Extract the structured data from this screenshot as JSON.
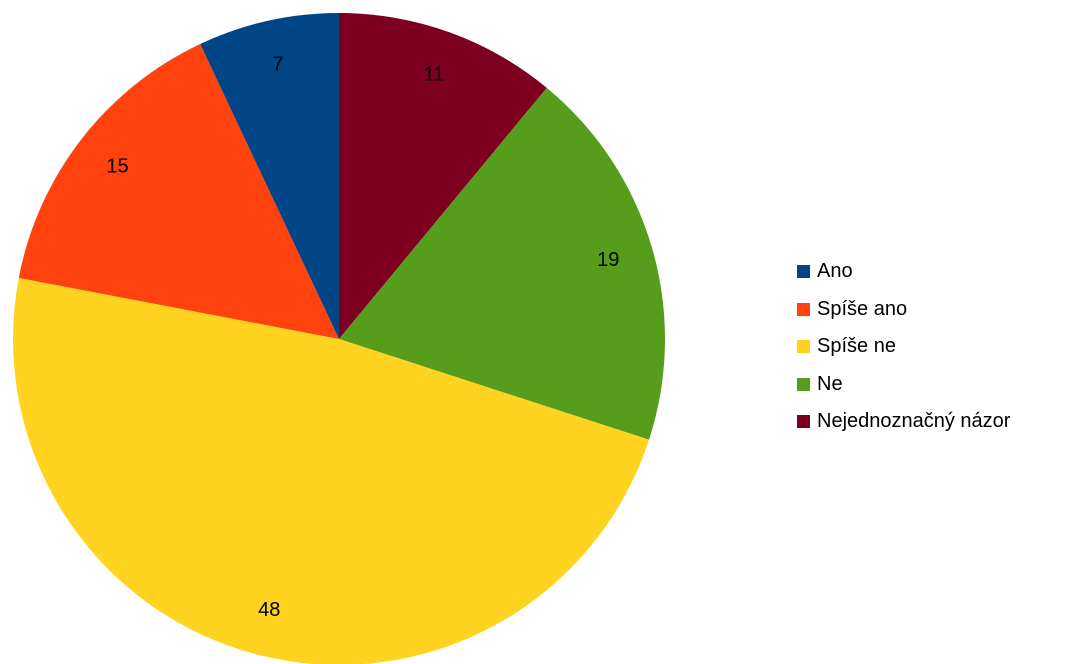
{
  "chart_data": {
    "type": "pie",
    "categories": [
      "Ano",
      "Spíše ano",
      "Spíše ne",
      "Ne",
      "Nejednoznačný názor"
    ],
    "values": [
      7,
      15,
      48,
      19,
      11
    ],
    "colors": [
      "#004586",
      "#ff420e",
      "#ffd320",
      "#579d1c",
      "#7e0021"
    ],
    "start_angle_deg": 0,
    "direction": "clockwise-from-top",
    "draw_order": [
      4,
      3,
      2,
      1,
      0
    ],
    "legend_position": "right",
    "title": ""
  }
}
